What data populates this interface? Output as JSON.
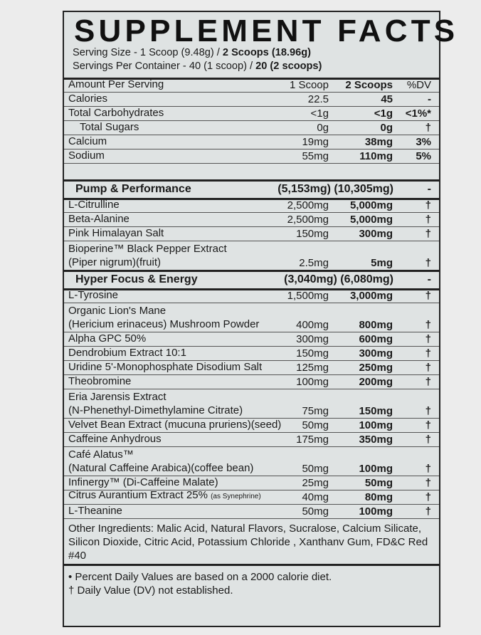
{
  "title": "SUPPLEMENT FACTS",
  "serving_size": {
    "label": "Serving Size - 1 Scoop (9.48g) / ",
    "bold": "2 Scoops (18.96g)"
  },
  "servings_per_container": {
    "label": "Servings Per Container - 40 (1 scoop) / ",
    "bold": "20 (2 scoops)"
  },
  "columns": {
    "name": "Amount Per Serving",
    "one": "1 Scoop",
    "two": "2 Scoops",
    "dv": "%DV"
  },
  "rows": [
    {
      "type": "item",
      "name": "Calories",
      "one": "22.5",
      "two": "45",
      "dv": "-"
    },
    {
      "type": "item",
      "name": "Total Carbohydrates",
      "one": "<1g",
      "two": "<1g",
      "dv": "<1%*"
    },
    {
      "type": "item",
      "name": "Total Sugars",
      "one": "0g",
      "two": "0g",
      "dv": "†",
      "indent": true
    },
    {
      "type": "item",
      "name": "Calcium",
      "one": "19mg",
      "two": "38mg",
      "dv": "3%"
    },
    {
      "type": "item",
      "name": "Sodium",
      "one": "55mg",
      "two": "110mg",
      "dv": "5%"
    },
    {
      "type": "blank"
    },
    {
      "type": "head",
      "name": "Pump & Performance",
      "one": "(5,153mg) (10,305mg)",
      "dv": "-"
    },
    {
      "type": "item",
      "name": "L-Citrulline",
      "one": "2,500mg",
      "two": "5,000mg",
      "dv": "†",
      "thick": true
    },
    {
      "type": "item",
      "name": "Beta-Alanine",
      "one": "2,500mg",
      "two": "5,000mg",
      "dv": "†"
    },
    {
      "type": "item",
      "name": "Pink Himalayan Salt",
      "one": "150mg",
      "two": "300mg",
      "dv": "†"
    },
    {
      "type": "two",
      "name": "Bioperine™ Black Pepper Extract",
      "name2": "(Piper nigrum)(fruit)",
      "one": "2.5mg",
      "two": "5mg",
      "dv": "†"
    },
    {
      "type": "head",
      "name": "Hyper Focus & Energy",
      "one": "(3,040mg) (6,080mg)",
      "dv": "-"
    },
    {
      "type": "item",
      "name": "L-Tyrosine",
      "one": "1,500mg",
      "two": "3,000mg",
      "dv": "†",
      "thick": true
    },
    {
      "type": "two",
      "name": "Organic Lion's Mane",
      "name2": "(Hericium erinaceus) Mushroom Powder",
      "one": "400mg",
      "two": "800mg",
      "dv": "†"
    },
    {
      "type": "item",
      "name": "Alpha GPC 50%",
      "one": "300mg",
      "two": "600mg",
      "dv": "†"
    },
    {
      "type": "item",
      "name": "Dendrobium Extract 10:1",
      "one": "150mg",
      "two": "300mg",
      "dv": "†"
    },
    {
      "type": "item",
      "name": "Uridine 5'-Monophosphate Disodium Salt",
      "one": "125mg",
      "two": "250mg",
      "dv": "†"
    },
    {
      "type": "item",
      "name": "Theobromine",
      "one": "100mg",
      "two": "200mg",
      "dv": "†"
    },
    {
      "type": "two",
      "name": "Eria Jarensis Extract",
      "name2": "(N-Phenethyl-Dimethylamine Citrate)",
      "one": "75mg",
      "two": "150mg",
      "dv": "†"
    },
    {
      "type": "item",
      "name": "Velvet Bean Extract (mucuna pruriens)(seed)",
      "one": "50mg",
      "two": "100mg",
      "dv": "†"
    },
    {
      "type": "item",
      "name": "Caffeine Anhydrous",
      "one": "175mg",
      "two": "350mg",
      "dv": "†"
    },
    {
      "type": "two",
      "name": "Café Alatus™",
      "name2": "(Natural Caffeine Arabica)(coffee bean)",
      "one": "50mg",
      "two": "100mg",
      "dv": "†"
    },
    {
      "type": "item",
      "name": "Infinergy™  (Di-Caffeine Malate)",
      "one": "25mg",
      "two": "50mg",
      "dv": "†"
    },
    {
      "type": "item",
      "name": "Citrus Aurantium Extract 25%",
      "note": "(as Synephrine)",
      "one": "40mg",
      "two": "80mg",
      "dv": "†"
    },
    {
      "type": "item",
      "name": "L-Theanine",
      "one": "50mg",
      "two": "100mg",
      "dv": "†"
    }
  ],
  "other_ingredients": "Other Ingredients: Malic Acid, Natural Flavors, Sucralose, Calcium Silicate, Silicon Dioxide, Citric Acid, Potassium Chloride , Xanthanv Gum, FD&C Red #40",
  "footnotes": [
    "• Percent Daily Values are based on a 2000 calorie diet.",
    "† Daily Value (DV) not established."
  ]
}
